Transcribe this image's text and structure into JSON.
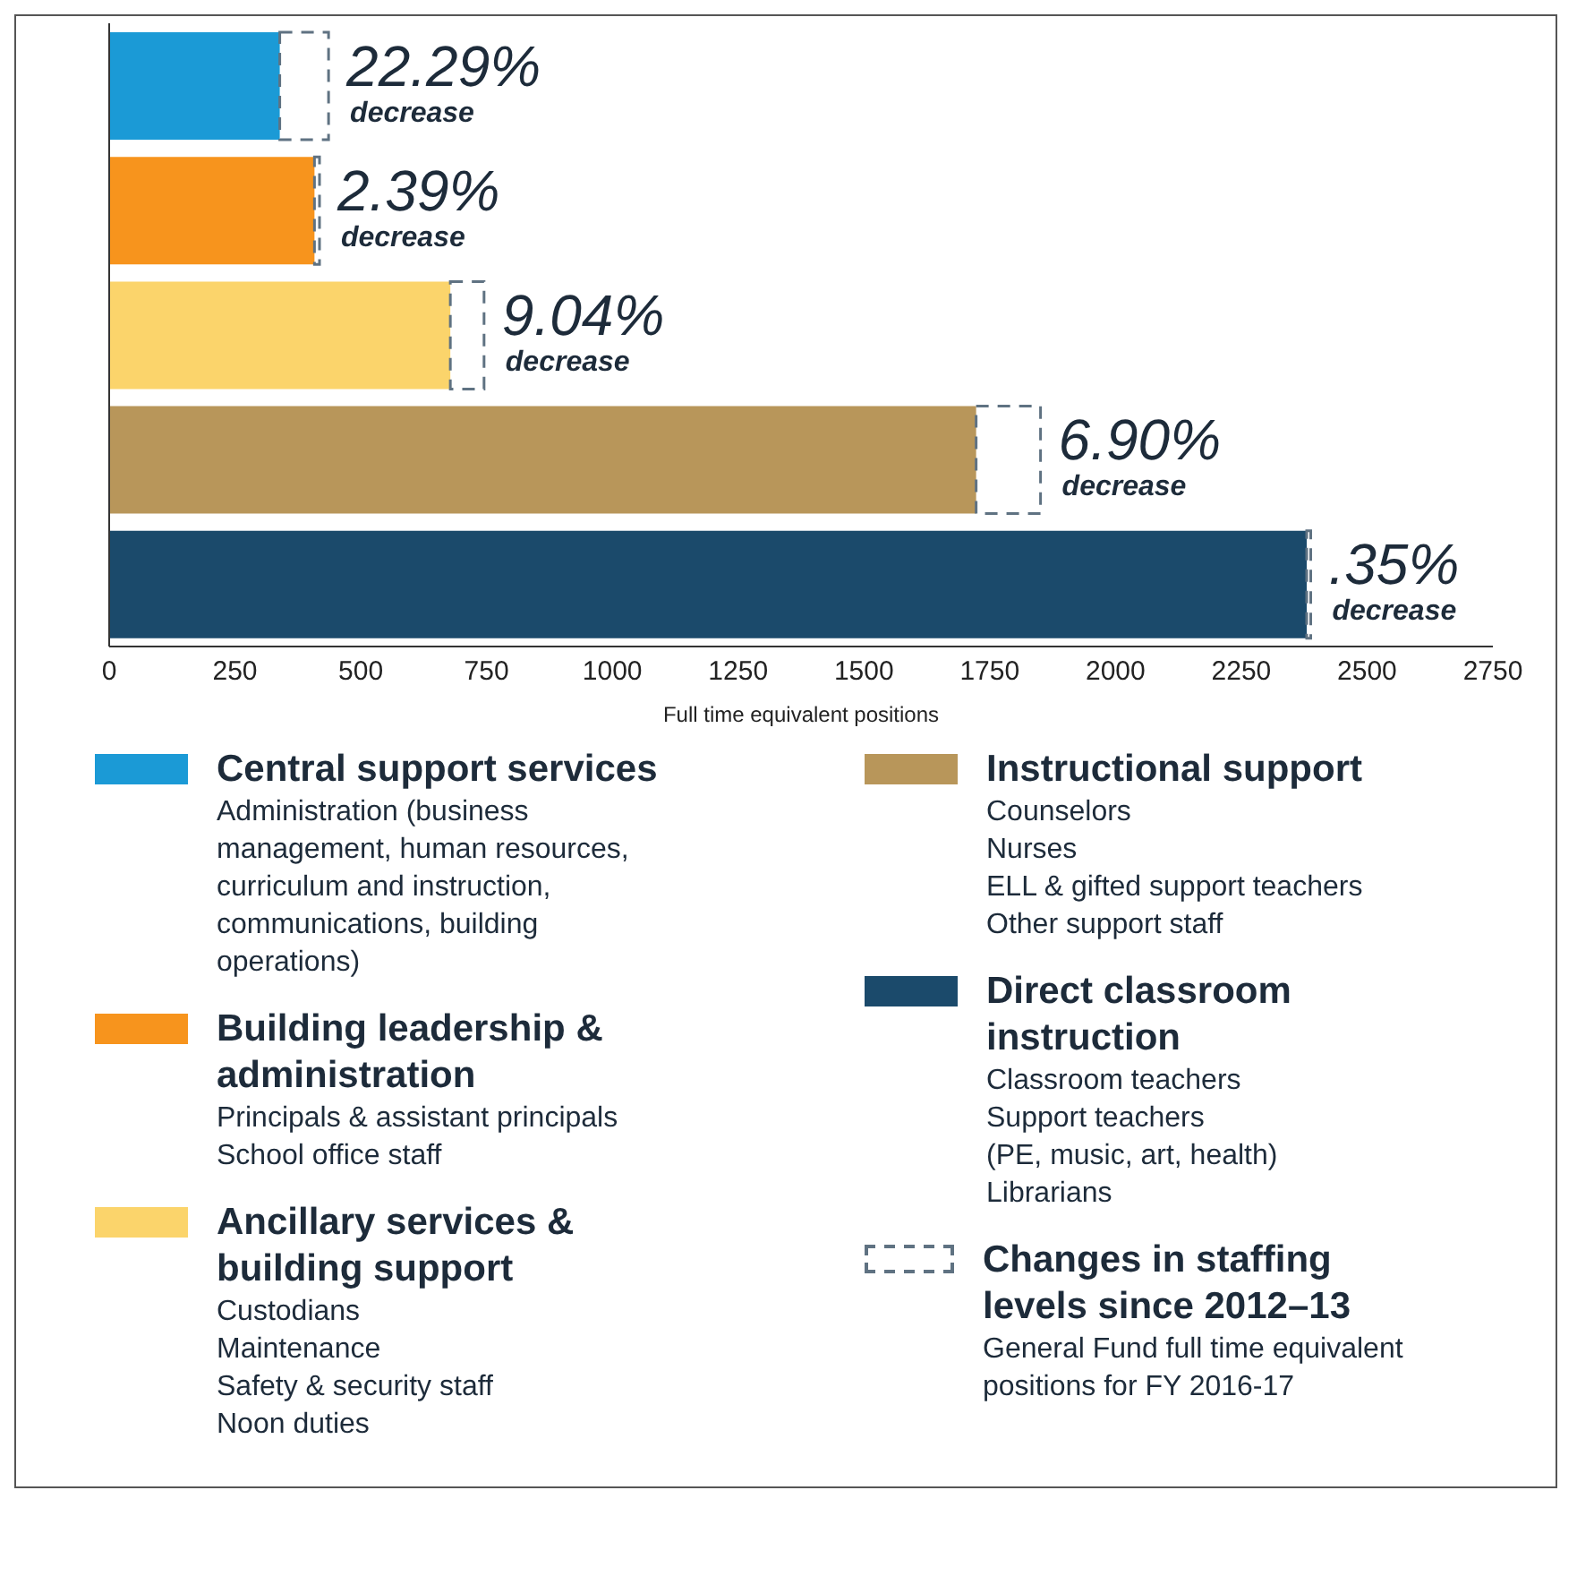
{
  "chart_data": {
    "type": "bar",
    "orientation": "horizontal",
    "categories": [
      null,
      null,
      null,
      null,
      null
    ],
    "series": [
      {
        "name": "Central support services",
        "color": "#1b9ad6",
        "values": [
          339,
          null,
          null,
          null,
          null
        ]
      },
      {
        "name": "Building leadership & administration",
        "color": "#f7941d",
        "values": [
          null,
          408,
          null,
          null,
          null
        ]
      },
      {
        "name": "Ancillary services & building support",
        "color": "#fbd46b",
        "values": [
          null,
          null,
          678,
          null,
          null
        ]
      },
      {
        "name": "Instructional support",
        "color": "#b8965a",
        "values": [
          null,
          null,
          null,
          1723,
          null
        ]
      },
      {
        "name": "Direct classroom instruction",
        "color": "#1b4a6b",
        "values": [
          null,
          null,
          null,
          null,
          2380
        ]
      },
      {
        "name": "Changes in staffing levels since 2012–13",
        "color": "#5f7282",
        "line_style": "dashed",
        "base": [
          339,
          408,
          678,
          1723,
          2380
        ],
        "values": [
          97,
          10,
          67,
          128,
          8
        ]
      }
    ],
    "xlabel": "Full time equivalent positions",
    "xlim": [
      0,
      2750
    ],
    "xticks": [
      0,
      250,
      500,
      750,
      1000,
      1250,
      1500,
      1750,
      2000,
      2250,
      2500,
      2750
    ],
    "tick_labels": "x",
    "grid": false,
    "legend": "bottom",
    "annotations": [
      "22.29% decrease",
      "2.39% decrease",
      "9.04% decrease",
      "6.90% decrease",
      ".35% decrease",
      "Administration (business management, human resources, curriculum and instruction, communications, building operations)",
      "Principals & assistant principals\nSchool office staff",
      "Custodians\nMaintenance\nSafety & security staff\nNoon duties",
      "Counselors\nNurses\nELL & gifted support teachers\nOther support staff",
      "Classroom teachers\nSupport teachers\n(PE, music, art, health)\nLibrarians",
      "General Fund full time equivalent positions for FY 2016-17"
    ]
  }
}
